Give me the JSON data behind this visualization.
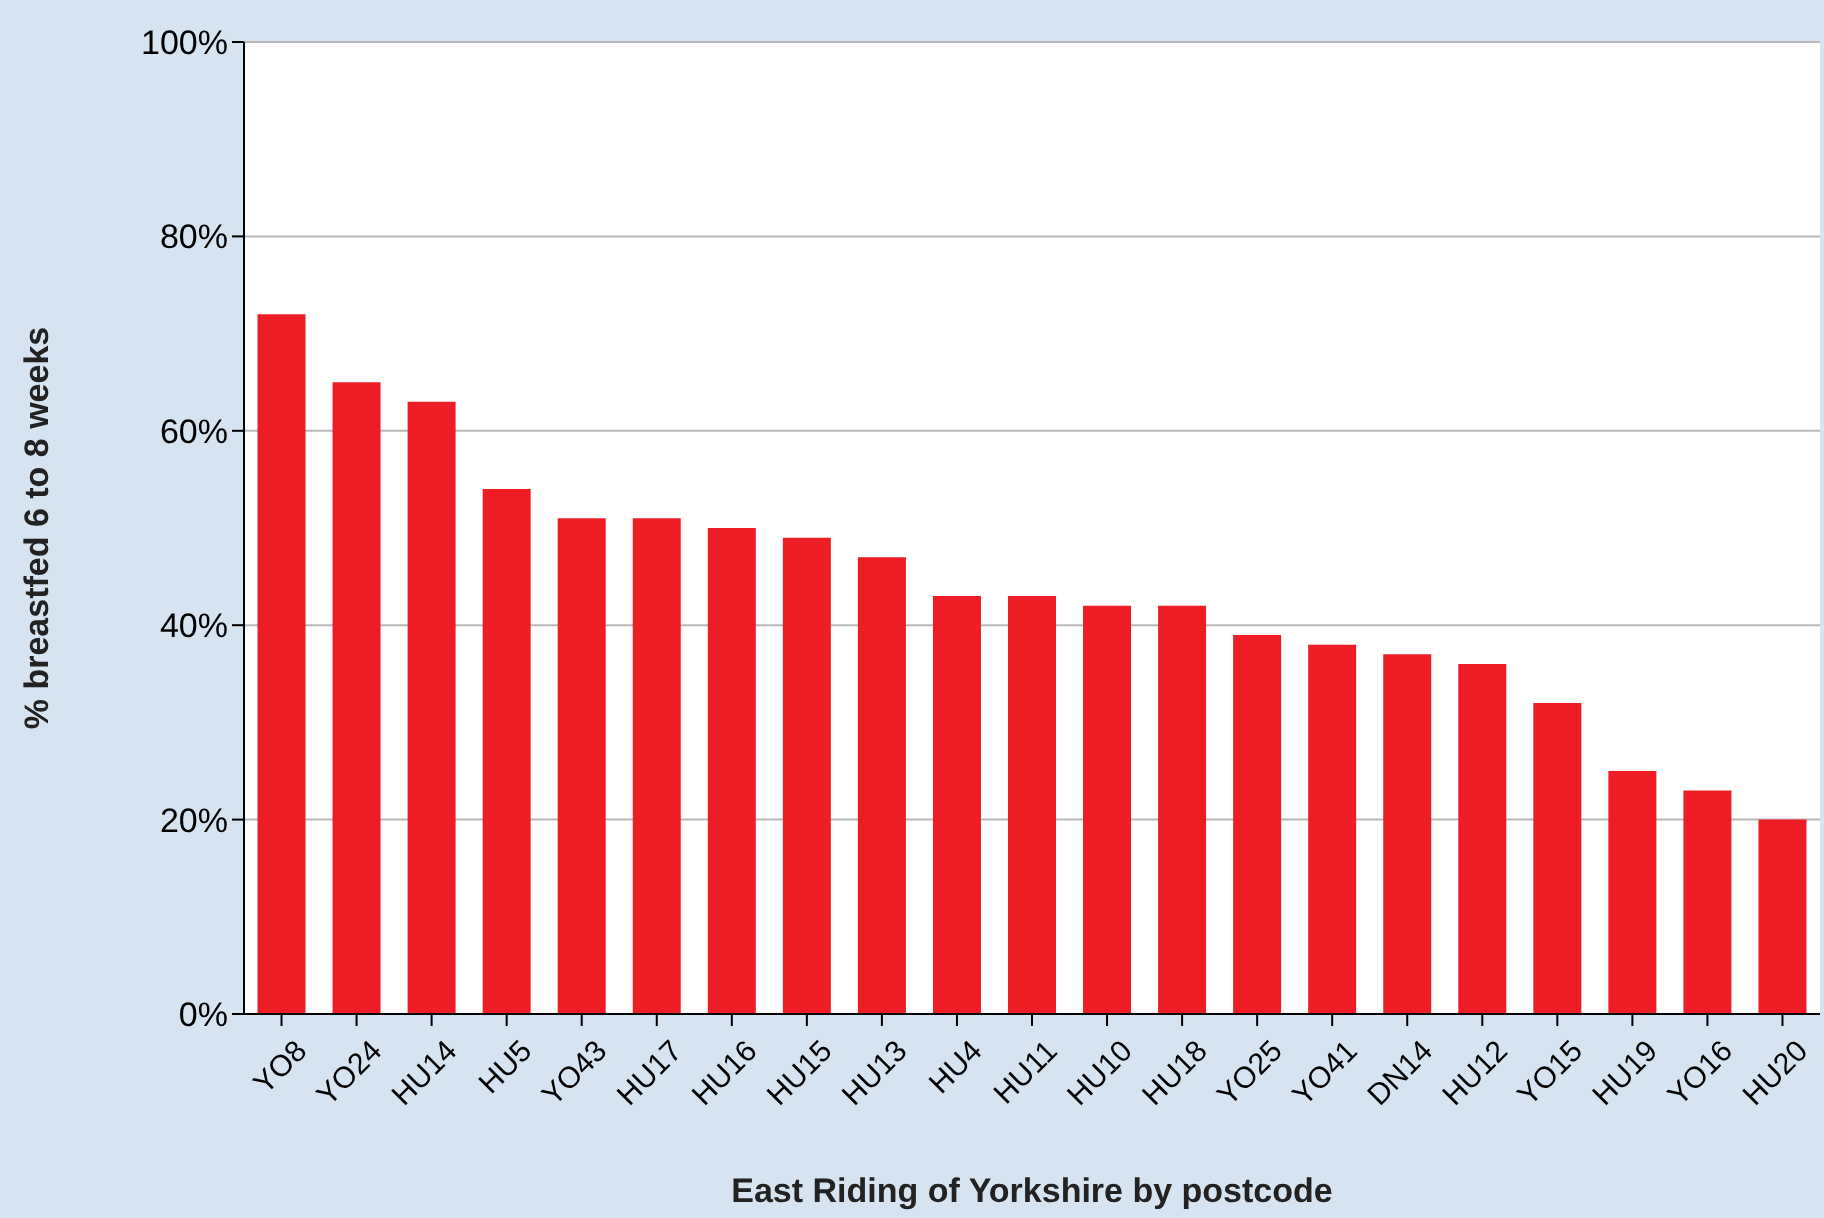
{
  "chart_data": {
    "type": "bar",
    "xlabel": "East Riding of Yorkshire by postcode",
    "ylabel": "% breastfed 6 to 8 weeks",
    "categories": [
      "YO8",
      "YO24",
      "HU14",
      "HU5",
      "YO43",
      "HU17",
      "HU16",
      "HU15",
      "HU13",
      "HU4",
      "HU11",
      "HU10",
      "HU18",
      "YO25",
      "YO41",
      "DN14",
      "HU12",
      "YO15",
      "HU19",
      "YO16",
      "HU20"
    ],
    "values": [
      72,
      65,
      63,
      54,
      51,
      51,
      50,
      49,
      47,
      43,
      43,
      42,
      42,
      39,
      38,
      37,
      36,
      32,
      25,
      23,
      20
    ],
    "color": "#ee1c25",
    "ylim": [
      0,
      100
    ],
    "yticks": [
      {
        "value": 0,
        "label": "0%"
      },
      {
        "value": 20,
        "label": "20%"
      },
      {
        "value": 40,
        "label": "40%"
      },
      {
        "value": 60,
        "label": "60%"
      },
      {
        "value": 80,
        "label": "80%"
      },
      {
        "value": 100,
        "label": "100%"
      }
    ],
    "grid": "y"
  }
}
